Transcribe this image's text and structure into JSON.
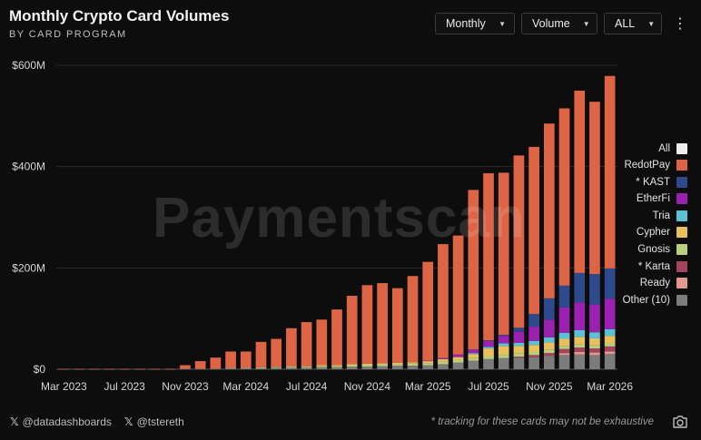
{
  "header": {
    "title": "Monthly Crypto Card Volumes",
    "subtitle": "BY CARD PROGRAM"
  },
  "controls": {
    "period": "Monthly",
    "metric": "Volume",
    "range": "ALL",
    "more_icon": "kebab-menu-icon"
  },
  "watermark": "Paymentscan",
  "footer": {
    "handle1": "@datadashboards",
    "handle2": "@tstereth",
    "note": "* tracking for these cards may not be exhaustive",
    "icons": [
      "x-logo-icon",
      "camera-icon"
    ]
  },
  "legend": [
    {
      "label": "All",
      "color": "#eeeeee"
    },
    {
      "label": "RedotPay",
      "color": "#dd6546"
    },
    {
      "label": "* KAST",
      "color": "#2c4a8c"
    },
    {
      "label": "EtherFi",
      "color": "#9b22b0"
    },
    {
      "label": "Tria",
      "color": "#5ac2d4"
    },
    {
      "label": "Cypher",
      "color": "#e8c05d"
    },
    {
      "label": "Gnosis",
      "color": "#b9d17e"
    },
    {
      "label": "* Karta",
      "color": "#a5445f"
    },
    {
      "label": "Ready",
      "color": "#e39a8c"
    },
    {
      "label": "Other (10)",
      "color": "#7c7c7c"
    }
  ],
  "chart_data": {
    "type": "bar",
    "stacked": true,
    "grid": "horizontal",
    "legend_position": "right",
    "y_ticks": [
      "$0",
      "$200M",
      "$400M",
      "$600M"
    ],
    "ylim": [
      0,
      600
    ],
    "y_unit": "$M",
    "x_ticks": [
      {
        "label": "Mar 2023",
        "index": 0
      },
      {
        "label": "Jul 2023",
        "index": 4
      },
      {
        "label": "Nov 2023",
        "index": 8
      },
      {
        "label": "Mar 2024",
        "index": 12
      },
      {
        "label": "Jul 2024",
        "index": 16
      },
      {
        "label": "Nov 2024",
        "index": 20
      },
      {
        "label": "Mar 2025",
        "index": 24
      },
      {
        "label": "Jul 2025",
        "index": 28
      },
      {
        "label": "Nov 2025",
        "index": 32
      },
      {
        "label": "Mar 2026",
        "index": 36
      }
    ],
    "categories": [
      "Mar 2023",
      "Apr 2023",
      "May 2023",
      "Jun 2023",
      "Jul 2023",
      "Aug 2023",
      "Sep 2023",
      "Oct 2023",
      "Nov 2023",
      "Dec 2023",
      "Jan 2024",
      "Feb 2024",
      "Mar 2024",
      "Apr 2024",
      "May 2024",
      "Jun 2024",
      "Jul 2024",
      "Aug 2024",
      "Sep 2024",
      "Oct 2024",
      "Nov 2024",
      "Dec 2024",
      "Jan 2025",
      "Feb 2025",
      "Mar 2025",
      "Apr 2025",
      "May 2025",
      "Jun 2025",
      "Jul 2025",
      "Aug 2025",
      "Sep 2025",
      "Oct 2025",
      "Nov 2025",
      "Dec 2025",
      "Jan 2026",
      "Feb 2026",
      "Mar 2026"
    ],
    "series": [
      {
        "name": "Other (10)",
        "color": "#7c7c7c",
        "values": [
          0.3,
          0.3,
          0.3,
          0.3,
          0.3,
          0.3,
          0.3,
          0.3,
          1,
          1,
          1,
          2,
          2,
          2,
          3,
          3,
          3,
          4,
          4,
          5,
          5,
          6,
          7,
          7,
          8,
          10,
          13,
          17,
          20,
          22,
          23,
          24,
          26,
          28,
          29,
          28,
          30
        ]
      },
      {
        "name": "Ready",
        "color": "#e39a8c",
        "values": [
          0,
          0,
          0,
          0,
          0,
          0,
          0,
          0,
          0,
          0,
          0,
          0,
          0,
          0,
          0,
          0,
          0,
          0,
          0,
          0,
          0,
          0,
          0,
          0,
          0,
          0,
          0,
          0,
          0,
          0,
          0,
          0,
          0,
          4,
          5,
          5,
          5
        ]
      },
      {
        "name": "* Karta",
        "color": "#a5445f",
        "values": [
          0,
          0,
          0,
          0,
          0,
          0,
          0,
          0,
          0,
          0,
          0,
          0,
          0,
          0,
          0,
          0,
          0,
          0,
          0,
          0,
          0,
          0,
          0,
          0,
          0,
          0,
          0,
          0,
          0,
          0,
          2,
          4,
          6,
          8,
          9,
          8,
          10
        ]
      },
      {
        "name": "Gnosis",
        "color": "#b9d17e",
        "values": [
          0,
          0,
          0,
          0,
          0,
          0,
          0,
          0,
          0,
          0,
          0,
          1,
          1,
          1,
          1,
          2,
          2,
          2,
          2,
          3,
          3,
          3,
          3,
          4,
          4,
          5,
          5,
          5,
          6,
          6,
          6,
          6,
          6,
          6,
          6,
          6,
          6
        ]
      },
      {
        "name": "Cypher",
        "color": "#e8c05d",
        "values": [
          0,
          0,
          0,
          0,
          0,
          0,
          0,
          0,
          0,
          0,
          0,
          0,
          0,
          1,
          1,
          1,
          1,
          2,
          2,
          2,
          3,
          3,
          3,
          3,
          4,
          5,
          6,
          8,
          15,
          18,
          15,
          14,
          15,
          14,
          15,
          14,
          15
        ]
      },
      {
        "name": "Tria",
        "color": "#5ac2d4",
        "values": [
          0,
          0,
          0,
          0,
          0,
          0,
          0,
          0,
          0,
          0,
          0,
          0,
          0,
          0,
          0,
          0,
          0,
          0,
          0,
          0,
          0,
          0,
          0,
          0,
          0,
          0,
          0,
          2,
          3,
          5,
          6,
          8,
          10,
          12,
          13,
          12,
          13
        ]
      },
      {
        "name": "EtherFi",
        "color": "#9b22b0",
        "values": [
          0,
          0,
          0,
          0,
          0,
          0,
          0,
          0,
          0,
          0,
          0,
          0,
          0,
          0,
          0,
          0,
          0,
          0,
          0,
          0,
          0,
          0,
          0,
          0,
          1,
          2,
          5,
          7,
          12,
          15,
          22,
          28,
          35,
          50,
          55,
          55,
          60
        ]
      },
      {
        "name": "* KAST",
        "color": "#2c4a8c",
        "values": [
          0,
          0,
          0,
          0,
          0,
          0,
          0,
          0,
          0,
          0,
          0,
          0,
          0,
          0,
          0,
          0,
          0,
          0,
          0,
          0,
          0,
          0,
          0,
          0,
          0,
          0,
          0,
          0,
          1,
          2,
          8,
          25,
          42,
          43,
          58,
          60,
          60
        ]
      },
      {
        "name": "RedotPay",
        "color": "#dd6546",
        "values": [
          0.2,
          0.2,
          0.2,
          0.2,
          0.2,
          0.2,
          0.2,
          0.2,
          7,
          15,
          22,
          32,
          32,
          50,
          55,
          75,
          87,
          90,
          110,
          135,
          155,
          158,
          147,
          170,
          195,
          225,
          235,
          315,
          330,
          320,
          340,
          330,
          345,
          350,
          360,
          340,
          380
        ]
      }
    ]
  }
}
